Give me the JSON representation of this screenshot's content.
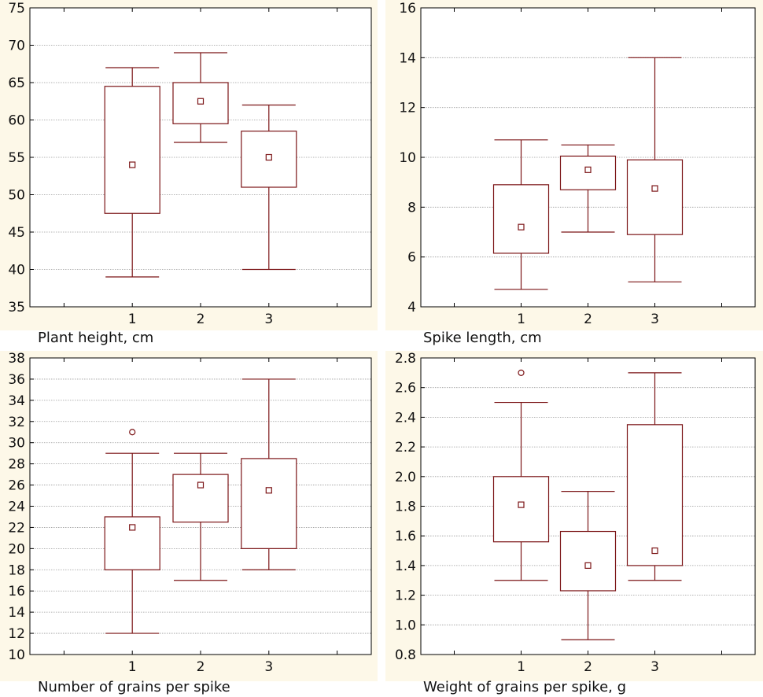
{
  "chart_data": [
    {
      "type": "box",
      "title": "Plant height, cm",
      "categories": [
        "1",
        "2",
        "3"
      ],
      "ylim": [
        35,
        75
      ],
      "yticks": [
        35,
        40,
        45,
        50,
        55,
        60,
        65,
        70,
        75
      ],
      "ytick_labels": [
        "35",
        "40",
        "45",
        "50",
        "55",
        "60",
        "65",
        "70",
        "75"
      ],
      "grid": true,
      "boxes": [
        {
          "category": "1",
          "median": 54,
          "q1": 47.5,
          "q3": 64.5,
          "whisker_low": 39,
          "whisker_high": 67,
          "outliers": []
        },
        {
          "category": "2",
          "median": 62.5,
          "q1": 59.5,
          "q3": 65,
          "whisker_low": 57,
          "whisker_high": 69,
          "outliers": []
        },
        {
          "category": "3",
          "median": 55,
          "q1": 51,
          "q3": 58.5,
          "whisker_low": 40,
          "whisker_high": 62,
          "outliers": []
        }
      ]
    },
    {
      "type": "box",
      "title": "Spike length, cm",
      "categories": [
        "1",
        "2",
        "3"
      ],
      "ylim": [
        4,
        16
      ],
      "yticks": [
        4,
        6,
        8,
        10,
        12,
        14,
        16
      ],
      "ytick_labels": [
        "4",
        "6",
        "8",
        "10",
        "12",
        "14",
        "16"
      ],
      "grid": true,
      "boxes": [
        {
          "category": "1",
          "median": 7.2,
          "q1": 6.15,
          "q3": 8.9,
          "whisker_low": 4.7,
          "whisker_high": 10.7,
          "outliers": []
        },
        {
          "category": "2",
          "median": 9.5,
          "q1": 8.7,
          "q3": 10.05,
          "whisker_low": 7,
          "whisker_high": 10.5,
          "outliers": []
        },
        {
          "category": "3",
          "median": 8.75,
          "q1": 6.9,
          "q3": 9.9,
          "whisker_low": 5,
          "whisker_high": 14,
          "outliers": []
        }
      ]
    },
    {
      "type": "box",
      "title": "Number of grains per spike",
      "categories": [
        "1",
        "2",
        "3"
      ],
      "ylim": [
        10,
        38
      ],
      "yticks": [
        10,
        12,
        14,
        16,
        18,
        20,
        22,
        24,
        26,
        28,
        30,
        32,
        34,
        36,
        38
      ],
      "ytick_labels": [
        "10",
        "12",
        "14",
        "16",
        "18",
        "20",
        "22",
        "24",
        "26",
        "28",
        "30",
        "32",
        "34",
        "36",
        "38"
      ],
      "grid": true,
      "boxes": [
        {
          "category": "1",
          "median": 22,
          "q1": 18,
          "q3": 23,
          "whisker_low": 12,
          "whisker_high": 29,
          "outliers": [
            31
          ]
        },
        {
          "category": "2",
          "median": 26,
          "q1": 22.5,
          "q3": 27,
          "whisker_low": 17,
          "whisker_high": 29,
          "outliers": []
        },
        {
          "category": "3",
          "median": 25.5,
          "q1": 20,
          "q3": 28.5,
          "whisker_low": 18,
          "whisker_high": 36,
          "outliers": []
        }
      ]
    },
    {
      "type": "box",
      "title": "Weight of grains per spike, g",
      "categories": [
        "1",
        "2",
        "3"
      ],
      "ylim": [
        0.8,
        2.8
      ],
      "yticks": [
        0.8,
        1.0,
        1.2,
        1.4,
        1.6,
        1.8,
        2.0,
        2.2,
        2.4,
        2.6,
        2.8
      ],
      "ytick_labels": [
        "0.8",
        "1.0",
        "1.2",
        "1.4",
        "1.6",
        "1.8",
        "2.0",
        "2.2",
        "2.4",
        "2.6",
        "2.8"
      ],
      "grid": true,
      "boxes": [
        {
          "category": "1",
          "median": 1.81,
          "q1": 1.56,
          "q3": 2.0,
          "whisker_low": 1.3,
          "whisker_high": 2.5,
          "outliers": [
            2.7
          ]
        },
        {
          "category": "2",
          "median": 1.4,
          "q1": 1.23,
          "q3": 1.63,
          "whisker_low": 0.9,
          "whisker_high": 1.9,
          "outliers": []
        },
        {
          "category": "3",
          "median": 1.5,
          "q1": 1.4,
          "q3": 2.35,
          "whisker_low": 1.3,
          "whisker_high": 2.7,
          "outliers": []
        }
      ]
    }
  ],
  "colors": {
    "box": "#7b1416",
    "frame_bg": "#fdf8e8",
    "plot_bg": "#ffffff",
    "grid": "#9a9a9a",
    "axis": "#000000"
  }
}
